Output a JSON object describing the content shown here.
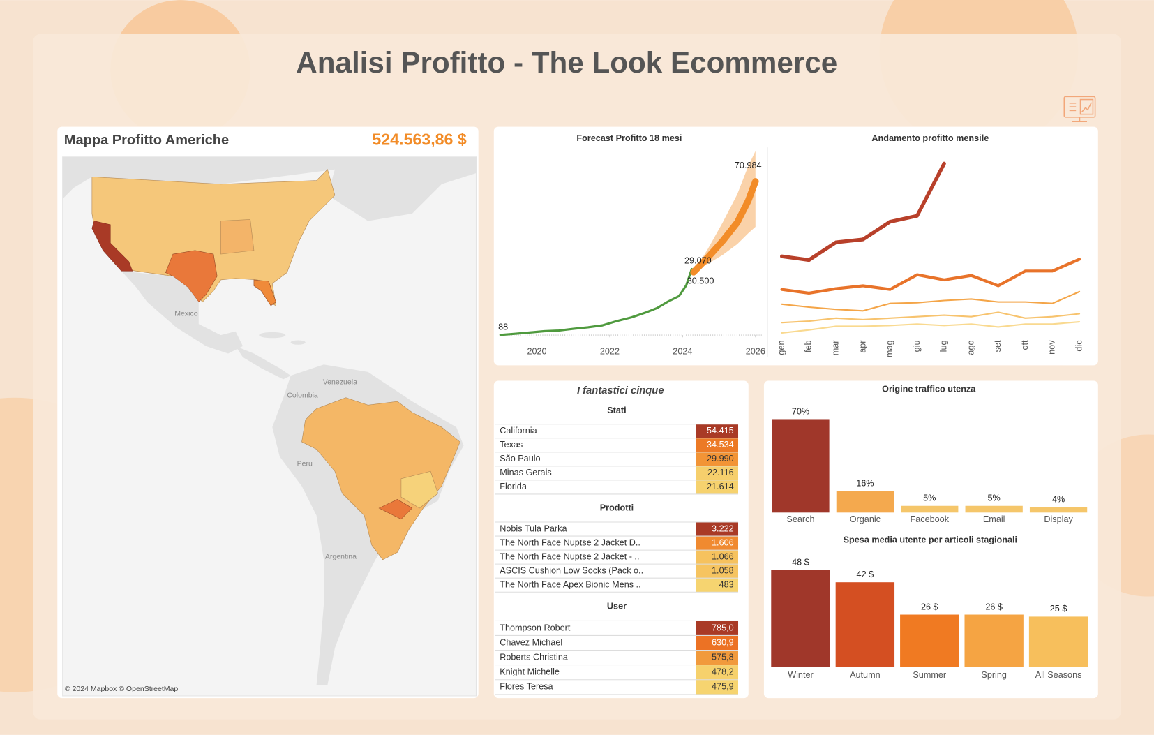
{
  "title": "Analisi Profitto - The Look Ecommerce",
  "map": {
    "title": "Mappa Profitto Americhe",
    "total": "524.563,86 $",
    "labels": [
      "Mexico",
      "Venezuela",
      "Colombia",
      "Peru",
      "Argentina"
    ],
    "credit": "© 2024 Mapbox © OpenStreetMap"
  },
  "chart_data": [
    {
      "type": "line",
      "title": "Forecast Profitto 18 mesi",
      "xlim": [
        2019,
        2026.2
      ],
      "xticks": [
        2020,
        2022,
        2024,
        2026
      ],
      "ylim": [
        0,
        85000
      ],
      "band_color": "#f9c793",
      "series": [
        {
          "color": "#4f9a3e",
          "x": [
            2019,
            2019.4,
            2019.8,
            2020.2,
            2020.6,
            2021,
            2021.4,
            2021.8,
            2022.2,
            2022.6,
            2023,
            2023.3,
            2023.6,
            2023.9,
            2024.1,
            2024.25
          ],
          "values": [
            88,
            600,
            1200,
            1800,
            2100,
            2900,
            3600,
            4500,
            6500,
            8200,
            10500,
            12500,
            15500,
            18000,
            23000,
            30500
          ]
        },
        {
          "color": "#f28c28",
          "x": [
            2024.3,
            2024.7,
            2025.1,
            2025.5,
            2025.8,
            2026
          ],
          "values": [
            29070,
            36000,
            43500,
            52000,
            62000,
            70984
          ],
          "upper": [
            29070,
            40000,
            52000,
            65000,
            78000,
            85000
          ],
          "lower": [
            29070,
            33000,
            37000,
            42000,
            47000,
            50000
          ]
        }
      ],
      "annotations": [
        {
          "x": 2019,
          "value": 88,
          "label": "88"
        },
        {
          "x": 2024.3,
          "value": 29070,
          "label": "29.070"
        },
        {
          "x": 2024.25,
          "value": 30500,
          "label": "30.500"
        },
        {
          "x": 2026,
          "value": 70984,
          "label": "70.984"
        }
      ]
    },
    {
      "type": "line",
      "title": "Andamento profitto mensile",
      "categories": [
        "gen",
        "feb",
        "mar",
        "apr",
        "mag",
        "giu",
        "lug",
        "ago",
        "set",
        "ott",
        "nov",
        "dic"
      ],
      "ylim": [
        0,
        10400
      ],
      "series": [
        {
          "color": "#b8402a",
          "values": [
            4480,
            4280,
            5240,
            5400,
            6360,
            6680,
            9520,
            null,
            null,
            null,
            null,
            null
          ]
        },
        {
          "color": "#e8732a",
          "values": [
            2680,
            2480,
            2720,
            2880,
            2680,
            3480,
            3200,
            3440,
            2880,
            3680,
            3680,
            4320
          ]
        },
        {
          "color": "#f4a548",
          "values": [
            1880,
            1720,
            1600,
            1520,
            1920,
            1960,
            2080,
            2160,
            2000,
            2000,
            1920,
            2560
          ]
        },
        {
          "color": "#f7c36e",
          "values": [
            880,
            960,
            1120,
            1040,
            1120,
            1200,
            1280,
            1200,
            1440,
            1120,
            1200,
            1360
          ]
        },
        {
          "color": "#f9d98f",
          "values": [
            320,
            480,
            680,
            680,
            720,
            800,
            720,
            800,
            640,
            800,
            800,
            920
          ]
        }
      ]
    },
    {
      "type": "bar",
      "title": "Origine traffico utenza",
      "categories": [
        "Search",
        "Organic",
        "Facebook",
        "Email",
        "Display"
      ],
      "values": [
        70,
        16,
        5,
        5,
        4
      ],
      "value_labels": [
        "70%",
        "16%",
        "5%",
        "5%",
        "4%"
      ],
      "colors": [
        "#a0372a",
        "#f4a94e",
        "#f5c66a",
        "#f5c66a",
        "#f5c66a"
      ],
      "ylim": [
        0,
        80
      ]
    },
    {
      "type": "bar",
      "title": "Spesa media utente per articoli stagionali",
      "categories": [
        "Winter",
        "Autumn",
        "Summer",
        "Spring",
        "All Seasons"
      ],
      "values": [
        48,
        42,
        26,
        26,
        25
      ],
      "value_labels": [
        "48 $",
        "42 $",
        "26 $",
        "26 $",
        "25 $"
      ],
      "colors": [
        "#a0372a",
        "#d44f22",
        "#f07a22",
        "#f5a443",
        "#f7bf5c"
      ],
      "ylim": [
        0,
        55
      ]
    }
  ],
  "tables": {
    "title": "I fantastici cinque",
    "sections": [
      {
        "title": "Stati",
        "rows": [
          {
            "name": "California",
            "value": "54.415",
            "color": "#a93a26"
          },
          {
            "name": "Texas",
            "value": "34.534",
            "color": "#ec7a25"
          },
          {
            "name": "São Paulo",
            "value": "29.990",
            "color": "#f29436"
          },
          {
            "name": "Minas Gerais",
            "value": "22.116",
            "color": "#f6cf6c"
          },
          {
            "name": "Florida",
            "value": "21.614",
            "color": "#f6d26e"
          }
        ]
      },
      {
        "title": "Prodotti",
        "rows": [
          {
            "name": "Nobis Tula Parka",
            "value": "3.222",
            "color": "#a93a26"
          },
          {
            "name": "The North Face Nuptse 2 Jacket D..",
            "value": "1.606",
            "color": "#f08a30"
          },
          {
            "name": "The North Face Nuptse 2 Jacket - ..",
            "value": "1.066",
            "color": "#f6c25e"
          },
          {
            "name": "ASCIS Cushion Low Socks (Pack o..",
            "value": "1.058",
            "color": "#f6c460"
          },
          {
            "name": "The North Face Apex Bionic Mens ..",
            "value": "483",
            "color": "#f6d470"
          }
        ]
      },
      {
        "title": "User",
        "rows": [
          {
            "name": "Thompson Robert",
            "value": "785,0",
            "color": "#a93a26"
          },
          {
            "name": "Chavez Michael",
            "value": "630,9",
            "color": "#ec7224"
          },
          {
            "name": "Roberts Christina",
            "value": "575,8",
            "color": "#f19a3c"
          },
          {
            "name": "Knight Michelle",
            "value": "478,2",
            "color": "#f6d16c"
          },
          {
            "name": "Flores Teresa",
            "value": "475,9",
            "color": "#f6d470"
          }
        ]
      }
    ]
  }
}
